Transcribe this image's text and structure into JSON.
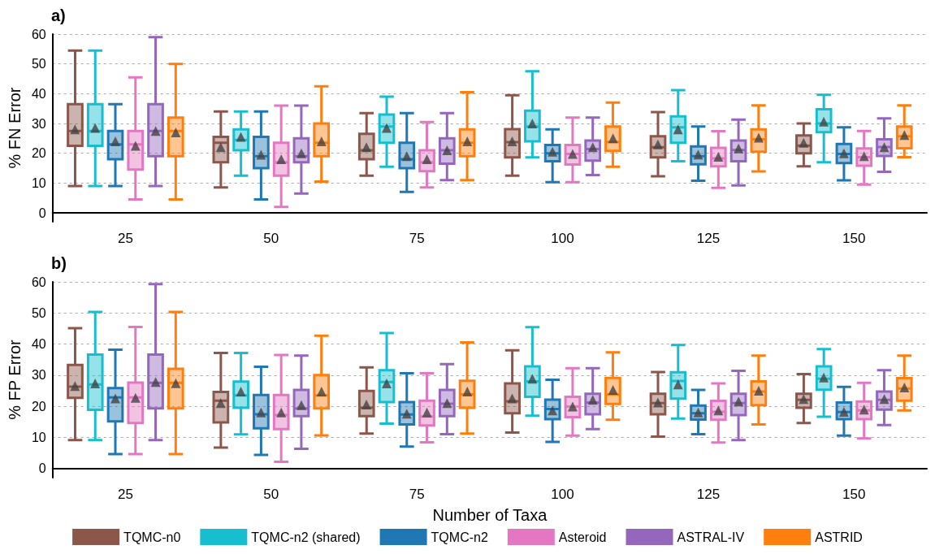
{
  "chart_data": [
    {
      "type": "box",
      "title": "a)",
      "ylabel": "% FN Error",
      "categories": [
        "25",
        "50",
        "75",
        "100",
        "125",
        "150"
      ],
      "ylim": [
        -3,
        60
      ],
      "yticks": [
        0,
        10,
        20,
        30,
        40,
        50,
        60
      ],
      "grid": "y",
      "marker": "triangle",
      "series": [
        {
          "color": "#8c564b",
          "boxes": [
            {
              "low": 9,
              "q1": 22.5,
              "median": 27.5,
              "q3": 36.5,
              "high": 54.5,
              "mean": 28
            },
            {
              "low": 8.5,
              "q1": 17,
              "median": 23.5,
              "q3": 25.5,
              "high": 34,
              "mean": 22
            },
            {
              "low": 12.5,
              "q1": 18,
              "median": 21,
              "q3": 26.5,
              "high": 33.5,
              "mean": 22
            },
            {
              "low": 12.5,
              "q1": 18.6,
              "median": 23.7,
              "q3": 28.1,
              "high": 39.5,
              "mean": 24
            },
            {
              "low": 12.3,
              "q1": 18.6,
              "median": 22,
              "q3": 25.7,
              "high": 33.8,
              "mean": 23
            },
            {
              "low": 15.6,
              "q1": 20,
              "median": 22.6,
              "q3": 26,
              "high": 30,
              "mean": 23.5
            }
          ]
        },
        {
          "color": "#17becf",
          "boxes": [
            {
              "low": 9,
              "q1": 22.5,
              "median": 27.5,
              "q3": 36.5,
              "high": 54.5,
              "mean": 28.5
            },
            {
              "low": 12.5,
              "q1": 21,
              "median": 24.5,
              "q3": 28,
              "high": 34,
              "mean": 25.5
            },
            {
              "low": 15.5,
              "q1": 23.5,
              "median": 29,
              "q3": 33,
              "high": 39,
              "mean": 28.5
            },
            {
              "low": 18.6,
              "q1": 24,
              "median": 29,
              "q3": 34.3,
              "high": 47.5,
              "mean": 30
            },
            {
              "low": 17.3,
              "q1": 23.5,
              "median": 28.7,
              "q3": 32.4,
              "high": 41.2,
              "mean": 28
            },
            {
              "low": 17,
              "q1": 27.1,
              "median": 30,
              "q3": 34.8,
              "high": 39.6,
              "mean": 30.6
            }
          ]
        },
        {
          "color": "#1f77b4",
          "boxes": [
            {
              "low": 9,
              "q1": 18,
              "median": 23,
              "q3": 27.5,
              "high": 36.5,
              "mean": 24
            },
            {
              "low": 4.5,
              "q1": 15,
              "median": 19,
              "q3": 25.5,
              "high": 34,
              "mean": 19.5
            },
            {
              "low": 7,
              "q1": 15,
              "median": 18,
              "q3": 23.5,
              "high": 33.5,
              "mean": 19
            },
            {
              "low": 10.3,
              "q1": 17.3,
              "median": 20,
              "q3": 22.8,
              "high": 28,
              "mean": 20.5
            },
            {
              "low": 10.8,
              "q1": 16.3,
              "median": 19,
              "q3": 22.3,
              "high": 29,
              "mean": 19.6
            },
            {
              "low": 10.9,
              "q1": 16.7,
              "median": 19.8,
              "q3": 23.1,
              "high": 28.7,
              "mean": 20
            }
          ]
        },
        {
          "color": "#e377c2",
          "boxes": [
            {
              "low": 4.5,
              "q1": 14.5,
              "median": 23,
              "q3": 27.5,
              "high": 45.5,
              "mean": 22.5
            },
            {
              "low": 2,
              "q1": 12.5,
              "median": 17,
              "q3": 23.5,
              "high": 36,
              "mean": 18
            },
            {
              "low": 8.5,
              "q1": 14,
              "median": 17,
              "q3": 21,
              "high": 30.5,
              "mean": 18
            },
            {
              "low": 10.3,
              "q1": 16.2,
              "median": 19.8,
              "q3": 22.8,
              "high": 32,
              "mean": 19.8
            },
            {
              "low": 8.4,
              "q1": 15.6,
              "median": 18.3,
              "q3": 21.8,
              "high": 27.4,
              "mean": 18.8
            },
            {
              "low": 9.5,
              "q1": 15.8,
              "median": 18.7,
              "q3": 21.6,
              "high": 27.5,
              "mean": 19
            }
          ]
        },
        {
          "color": "#9467bd",
          "boxes": [
            {
              "low": 9,
              "q1": 19,
              "median": 27.5,
              "q3": 36.5,
              "high": 59,
              "mean": 27.5
            },
            {
              "low": 6.5,
              "q1": 17,
              "median": 19,
              "q3": 25,
              "high": 36,
              "mean": 20
            },
            {
              "low": 11,
              "q1": 16.5,
              "median": 21,
              "q3": 25,
              "high": 33.5,
              "mean": 21
            },
            {
              "low": 12.7,
              "q1": 17.5,
              "median": 21.4,
              "q3": 24.3,
              "high": 32,
              "mean": 22
            },
            {
              "low": 9.2,
              "q1": 17.3,
              "median": 21.1,
              "q3": 24.3,
              "high": 31.3,
              "mean": 21.6
            },
            {
              "low": 13.8,
              "q1": 19.1,
              "median": 22.1,
              "q3": 24.7,
              "high": 31.7,
              "mean": 22
            }
          ]
        },
        {
          "color": "#ff7f0e",
          "boxes": [
            {
              "low": 4.5,
              "q1": 19,
              "median": 27.5,
              "q3": 32,
              "high": 50,
              "mean": 27
            },
            {
              "low": 10.5,
              "q1": 19,
              "median": 23.5,
              "q3": 30,
              "high": 42.5,
              "mean": 24
            },
            {
              "low": 11,
              "q1": 19,
              "median": 23.5,
              "q3": 28,
              "high": 40.5,
              "mean": 24
            },
            {
              "low": 15.5,
              "q1": 20.8,
              "median": 23.8,
              "q3": 29,
              "high": 37,
              "mean": 25
            },
            {
              "low": 13.9,
              "q1": 20.5,
              "median": 24.7,
              "q3": 28,
              "high": 36.1,
              "mean": 25.2
            },
            {
              "low": 18.7,
              "q1": 21.7,
              "median": 25.7,
              "q3": 29,
              "high": 36.1,
              "mean": 26.1
            }
          ]
        }
      ]
    },
    {
      "type": "box",
      "title": "b)",
      "ylabel": "% FP Error",
      "xlabel": "Number of Taxa",
      "categories": [
        "25",
        "50",
        "75",
        "100",
        "125",
        "150"
      ],
      "ylim": [
        -3,
        60
      ],
      "yticks": [
        0,
        10,
        20,
        30,
        40,
        50,
        60
      ],
      "grid": "y",
      "marker": "triangle",
      "legend": "bottom",
      "series": [
        {
          "name": "TQMC-n0",
          "color": "#8c564b",
          "boxes": [
            {
              "low": 9.1,
              "q1": 22.7,
              "median": 26.3,
              "q3": 33.3,
              "high": 45.1,
              "mean": 26.5
            },
            {
              "low": 6.7,
              "q1": 14.8,
              "median": 21.8,
              "q3": 24.6,
              "high": 37.1,
              "mean": 21
            },
            {
              "low": 11.2,
              "q1": 16.8,
              "median": 19.5,
              "q3": 24.9,
              "high": 32.5,
              "mean": 20.5
            },
            {
              "low": 11.5,
              "q1": 17.7,
              "median": 21.6,
              "q3": 27.3,
              "high": 38,
              "mean": 22.5
            },
            {
              "low": 10.2,
              "q1": 17.4,
              "median": 21,
              "q3": 24,
              "high": 31,
              "mean": 21.2
            },
            {
              "low": 14.6,
              "q1": 19.5,
              "median": 22,
              "q3": 24,
              "high": 30.3,
              "mean": 22.3
            }
          ]
        },
        {
          "name": "TQMC-n2 (shared)",
          "color": "#17becf",
          "boxes": [
            {
              "low": 9.1,
              "q1": 18.8,
              "median": 27,
              "q3": 36.6,
              "high": 50.3,
              "mean": 27.3
            },
            {
              "low": 10.9,
              "q1": 19.5,
              "median": 23.5,
              "q3": 27.9,
              "high": 37.1,
              "mean": 24.7
            },
            {
              "low": 14.4,
              "q1": 21.3,
              "median": 27.8,
              "q3": 31.6,
              "high": 43.5,
              "mean": 27.3
            },
            {
              "low": 16.9,
              "q1": 23,
              "median": 28,
              "q3": 32.8,
              "high": 45.4,
              "mean": 28.8
            },
            {
              "low": 16,
              "q1": 22.4,
              "median": 28.1,
              "q3": 30.9,
              "high": 39.7,
              "mean": 27
            },
            {
              "low": 16.6,
              "q1": 25.3,
              "median": 28.8,
              "q3": 32.8,
              "high": 38.4,
              "mean": 29.2
            }
          ]
        },
        {
          "name": "TQMC-n2",
          "color": "#1f77b4",
          "boxes": [
            {
              "low": 4.6,
              "q1": 15.1,
              "median": 22.8,
              "q3": 25.8,
              "high": 38.2,
              "mean": 22.5
            },
            {
              "low": 4.3,
              "q1": 12.9,
              "median": 17.4,
              "q3": 23.6,
              "high": 32.7,
              "mean": 18
            },
            {
              "low": 7,
              "q1": 14.1,
              "median": 17.3,
              "q3": 21.3,
              "high": 30.6,
              "mean": 17.6
            },
            {
              "low": 8.5,
              "q1": 15.8,
              "median": 19.1,
              "q3": 22.1,
              "high": 28.5,
              "mean": 18.6
            },
            {
              "low": 11,
              "q1": 15.7,
              "median": 17.7,
              "q3": 20.2,
              "high": 25.2,
              "mean": 18
            },
            {
              "low": 10.5,
              "q1": 15.8,
              "median": 18.1,
              "q3": 21.2,
              "high": 26.2,
              "mean": 18.2
            }
          ]
        },
        {
          "name": "Asteroid",
          "color": "#e377c2",
          "boxes": [
            {
              "low": 4.6,
              "q1": 14.6,
              "median": 22.8,
              "q3": 27.6,
              "high": 45.5,
              "mean": 22.7
            },
            {
              "low": 2.1,
              "q1": 12.6,
              "median": 17.1,
              "q3": 23.6,
              "high": 36.5,
              "mean": 18
            },
            {
              "low": 8.4,
              "q1": 13.8,
              "median": 16.7,
              "q3": 21.8,
              "high": 30.6,
              "mean": 18
            },
            {
              "low": 10.5,
              "q1": 16.5,
              "median": 19.9,
              "q3": 23,
              "high": 32.2,
              "mean": 19.9
            },
            {
              "low": 8.3,
              "q1": 15.6,
              "median": 18.2,
              "q3": 21.7,
              "high": 27.3,
              "mean": 18.6
            },
            {
              "low": 9.6,
              "q1": 15.8,
              "median": 18.6,
              "q3": 21.5,
              "high": 27.5,
              "mean": 18.9
            }
          ]
        },
        {
          "name": "ASTRAL-IV",
          "color": "#9467bd",
          "boxes": [
            {
              "low": 9.1,
              "q1": 19.3,
              "median": 27.5,
              "q3": 36.6,
              "high": 59.3,
              "mean": 27.8
            },
            {
              "low": 6.3,
              "q1": 16.8,
              "median": 19.3,
              "q3": 25.2,
              "high": 36.3,
              "mean": 20.3
            },
            {
              "low": 11,
              "q1": 16.8,
              "median": 20.8,
              "q3": 25.2,
              "high": 33.5,
              "mean": 21
            },
            {
              "low": 12.6,
              "q1": 17.4,
              "median": 21.2,
              "q3": 24,
              "high": 32.2,
              "mean": 22
            },
            {
              "low": 9.1,
              "q1": 17.1,
              "median": 21,
              "q3": 24,
              "high": 31.4,
              "mean": 21.5
            },
            {
              "low": 13.9,
              "q1": 18.9,
              "median": 22,
              "q3": 24.7,
              "high": 31.6,
              "mean": 22.3
            }
          ]
        },
        {
          "name": "ASTRID",
          "color": "#ff7f0e",
          "boxes": [
            {
              "low": 4.6,
              "q1": 19.3,
              "median": 27.5,
              "q3": 32,
              "high": 50.3,
              "mean": 27.4
            },
            {
              "low": 10.6,
              "q1": 19.3,
              "median": 23.5,
              "q3": 30,
              "high": 42.7,
              "mean": 24.7
            },
            {
              "low": 11.2,
              "q1": 19.5,
              "median": 23.8,
              "q3": 28.2,
              "high": 40.5,
              "mean": 24.7
            },
            {
              "low": 15.6,
              "q1": 20.7,
              "median": 23.8,
              "q3": 29.1,
              "high": 37.3,
              "mean": 25.2
            },
            {
              "low": 14.1,
              "q1": 20.3,
              "median": 24.7,
              "q3": 28,
              "high": 36.3,
              "mean": 25
            },
            {
              "low": 18.6,
              "q1": 21.8,
              "median": 25.7,
              "q3": 29,
              "high": 36.3,
              "mean": 26
            }
          ]
        }
      ]
    }
  ]
}
